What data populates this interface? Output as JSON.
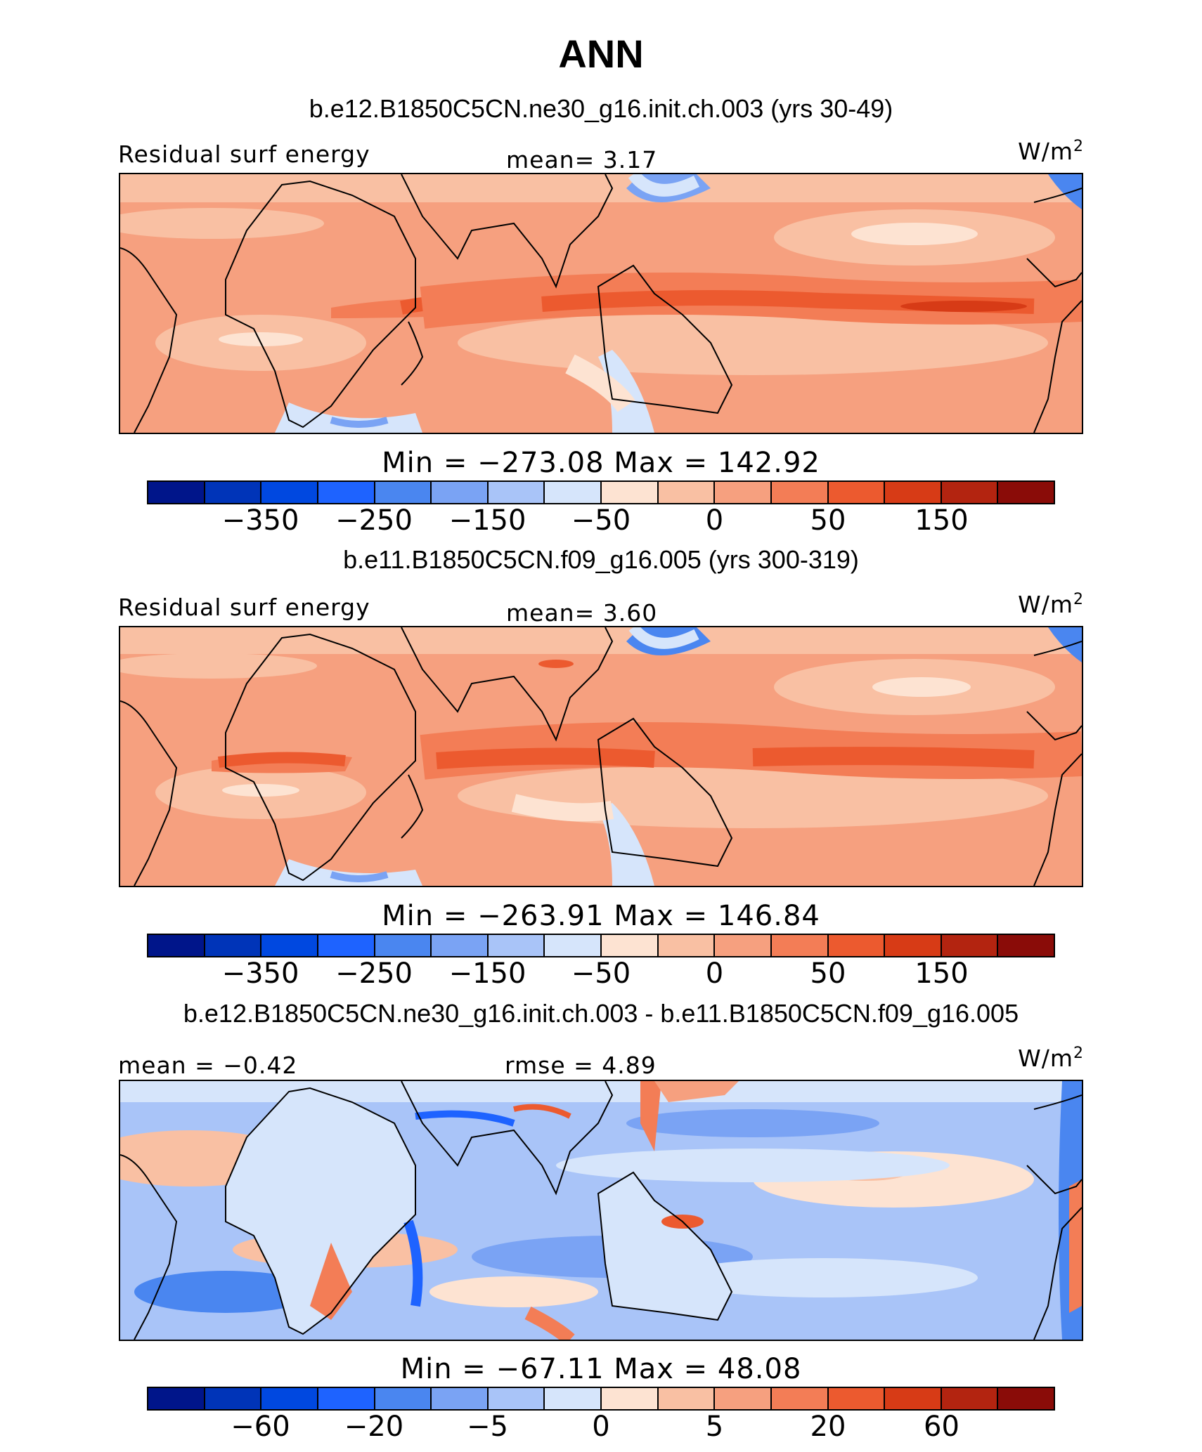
{
  "title": "ANN",
  "colors": {
    "scale": [
      "#00158a",
      "#0034b8",
      "#0048e0",
      "#1e63ff",
      "#4a86f0",
      "#7aa3f4",
      "#a9c4f8",
      "#d6e5fb",
      "#fde3d2",
      "#f9c0a3",
      "#f6a07f",
      "#f37d56",
      "#ec5a2f",
      "#d73b16",
      "#b32410",
      "#8a0c08"
    ]
  },
  "panels": [
    {
      "case_title": "b.e12.B1850C5CN.ne30_g16.init.ch.003 (yrs 30-49)",
      "left_label": "Residual surf energy",
      "center_label": "mean=   3.17",
      "units": "W/m",
      "units_sup": "2",
      "minmax": "Min  =  −273.08  Max  =  142.92",
      "ticks": [
        "−350",
        "−250",
        "−150",
        "−50",
        "0",
        "50",
        "150"
      ]
    },
    {
      "case_title": "b.e11.B1850C5CN.f09_g16.005 (yrs 300-319)",
      "left_label": "Residual surf energy",
      "center_label": "mean=   3.60",
      "units": "W/m",
      "units_sup": "2",
      "minmax": "Min  =  −263.91  Max  =  146.84",
      "ticks": [
        "−350",
        "−250",
        "−150",
        "−50",
        "0",
        "50",
        "150"
      ]
    },
    {
      "case_title": "b.e12.B1850C5CN.ne30_g16.init.ch.003 - b.e11.B1850C5CN.f09_g16.005",
      "left_label": "mean =  −0.42",
      "center_label": "rmse =    4.89",
      "units": "W/m",
      "units_sup": "2",
      "minmax": "Min  =  −67.11  Max  =   48.08",
      "ticks": [
        "−60",
        "−20",
        "−5",
        "0",
        "5",
        "20",
        "60"
      ]
    }
  ]
}
